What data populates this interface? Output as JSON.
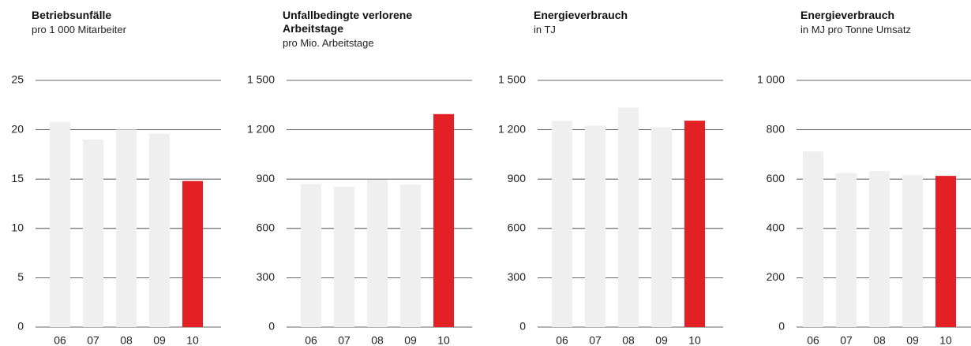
{
  "chart_data": [
    {
      "type": "bar",
      "title": "Betriebsunfälle",
      "subtitle": "pro 1 000 Mitarbeiter",
      "categories": [
        "06",
        "07",
        "08",
        "09",
        "10"
      ],
      "values": [
        20.8,
        19,
        20,
        19.6,
        14.8
      ],
      "colors": [
        "#efefef",
        "#efefef",
        "#efefef",
        "#efefef",
        "#e32124"
      ],
      "ylim": [
        0,
        25
      ],
      "yticks": [
        0,
        5,
        10,
        15,
        20,
        25
      ],
      "grid": true
    },
    {
      "type": "bar",
      "title": "Unfallbedingte verlorene Arbeitstage",
      "subtitle": "pro Mio. Arbeitstage",
      "categories": [
        "06",
        "07",
        "08",
        "09",
        "10"
      ],
      "values": [
        870,
        853,
        896,
        867,
        1295
      ],
      "colors": [
        "#efefef",
        "#efefef",
        "#efefef",
        "#efefef",
        "#e32124"
      ],
      "ylim": [
        0,
        1500
      ],
      "yticks": [
        0,
        300,
        600,
        900,
        {
          "value": 1200,
          "label": "1 200"
        },
        {
          "value": 1500,
          "label": "1 500"
        }
      ],
      "grid": true
    },
    {
      "type": "bar",
      "title": "Energieverbrauch",
      "subtitle": "in TJ",
      "categories": [
        "06",
        "07",
        "08",
        "09",
        "10"
      ],
      "values": [
        1253,
        1225,
        1335,
        1215,
        1255
      ],
      "colors": [
        "#efefef",
        "#efefef",
        "#efefef",
        "#efefef",
        "#e32124"
      ],
      "ylim": [
        0,
        1500
      ],
      "yticks": [
        0,
        300,
        600,
        900,
        {
          "value": 1200,
          "label": "1 200"
        },
        {
          "value": 1500,
          "label": "1 500"
        }
      ],
      "grid": true
    },
    {
      "type": "bar",
      "title": "Energieverbrauch",
      "subtitle": "in MJ pro Tonne Umsatz",
      "categories": [
        "06",
        "07",
        "08",
        "09",
        "10"
      ],
      "values": [
        712,
        625,
        632,
        616,
        613
      ],
      "colors": [
        "#efefef",
        "#efefef",
        "#efefef",
        "#efefef",
        "#e32124"
      ],
      "ylim": [
        0,
        1000
      ],
      "yticks": [
        0,
        200,
        400,
        600,
        800,
        {
          "value": 1000,
          "label": "1 000"
        }
      ],
      "grid": true
    }
  ]
}
